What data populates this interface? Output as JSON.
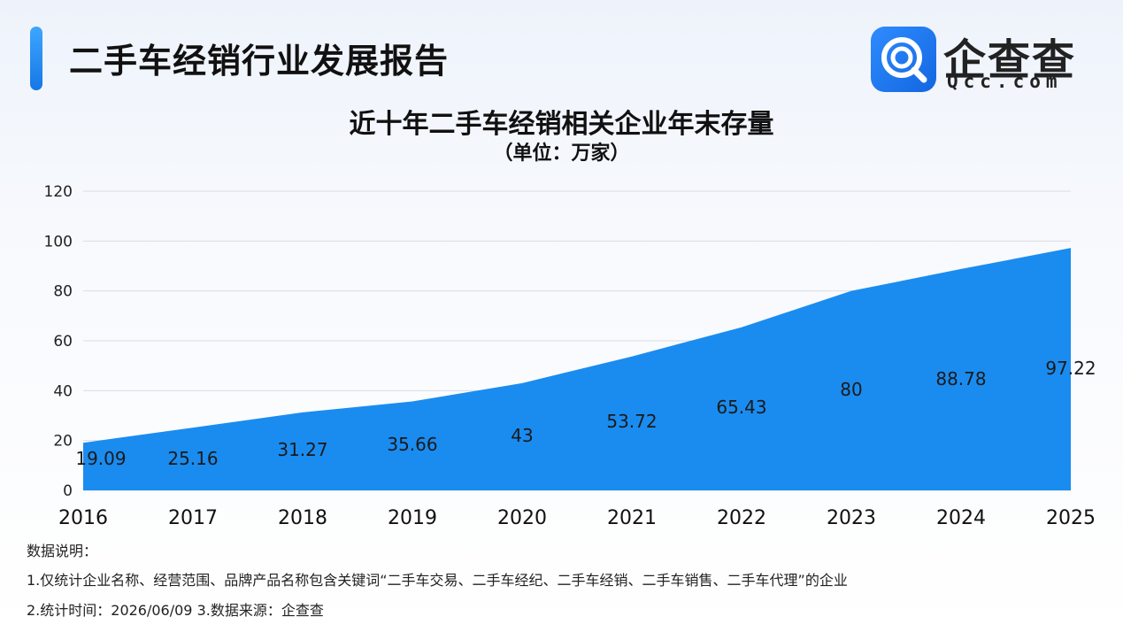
{
  "header": {
    "report_title": "二手车经销行业发展报告",
    "logo_name": "企查查",
    "logo_sub": "Qcc.com",
    "logo_icon": "qcc-magnifier-logo",
    "accent_color": "#1a8cf0"
  },
  "chart_data": {
    "type": "area",
    "title": "近十年二手车经销相关企业年末存量",
    "subtitle": "（单位：万家）",
    "categories": [
      "2016",
      "2017",
      "2018",
      "2019",
      "2020",
      "2021",
      "2022",
      "2023",
      "2024",
      "2025"
    ],
    "values": [
      19.09,
      25.16,
      31.27,
      35.66,
      43,
      53.72,
      65.43,
      80,
      88.78,
      97.22
    ],
    "data_labels": [
      "19.09",
      "25.16",
      "31.27",
      "35.66",
      "43",
      "53.72",
      "65.43",
      "80",
      "88.78",
      "97.22"
    ],
    "y_ticks": [
      "0",
      "20",
      "40",
      "60",
      "80",
      "100",
      "120"
    ],
    "ylim": [
      0,
      120
    ],
    "grid": true,
    "fill_color": "#1a8cf0"
  },
  "notes": {
    "heading": "数据说明：",
    "line1": "1.仅统计企业名称、经营范围、品牌产品名称包含关键词“二手车交易、二手车经纪、二手车经销、二手车销售、二手车代理”的企业",
    "line2": "2.统计时间：2026/06/09    3.数据来源：企查查"
  }
}
